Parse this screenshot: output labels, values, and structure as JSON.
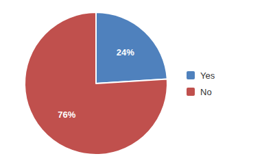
{
  "chart_data": {
    "type": "pie",
    "categories": [
      "Yes",
      "No"
    ],
    "values": [
      24,
      76
    ],
    "colors": [
      "#4F81BD",
      "#C0504D"
    ],
    "value_labels": [
      "24%",
      "76%"
    ],
    "data_labels": true,
    "legend": "right"
  }
}
